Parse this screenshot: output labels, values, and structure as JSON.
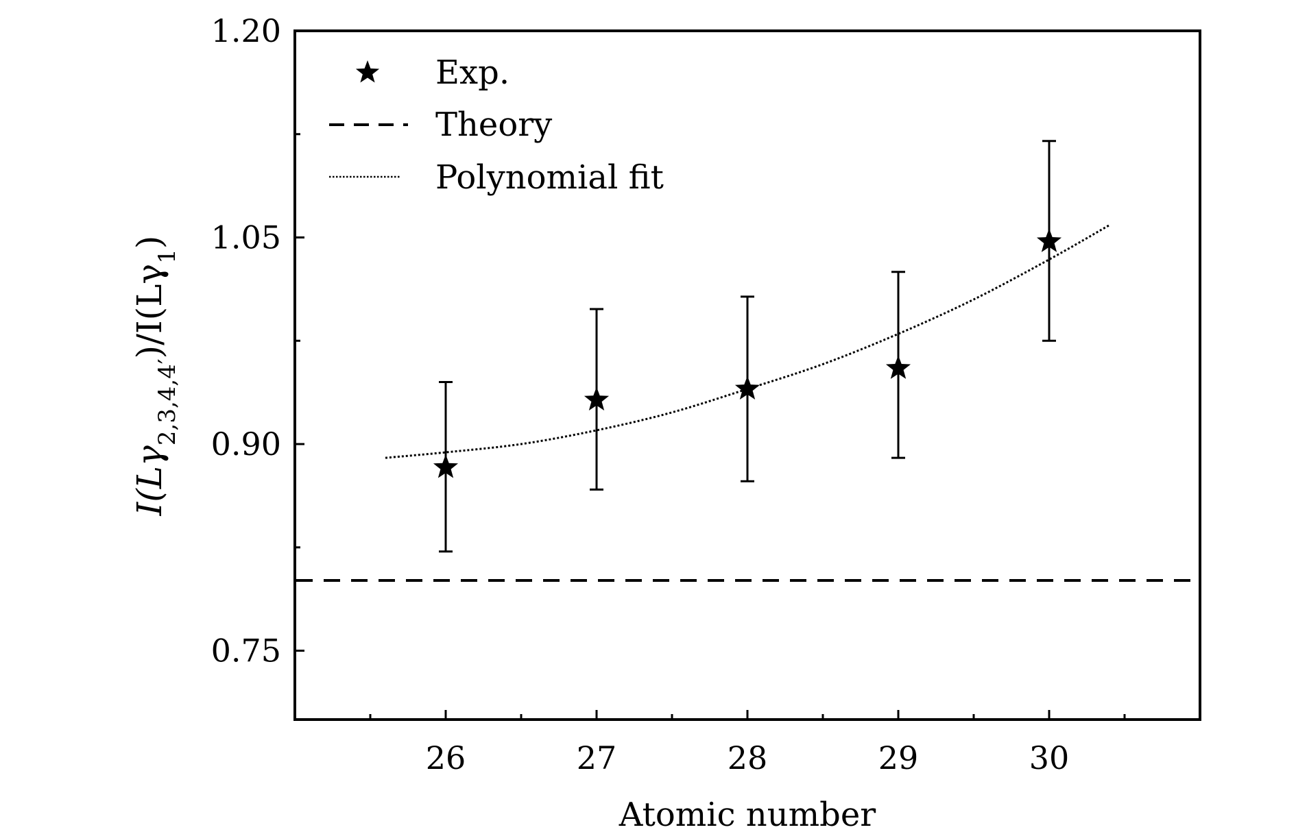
{
  "chart_data": {
    "type": "scatter",
    "title": "",
    "xlabel": "Atomic number",
    "ylabel": {
      "main": "I(Lγ",
      "sub1": "2,3,4,4′",
      "middle": ")/I(Lγ",
      "sub2": "1",
      "end": ")"
    },
    "xlim": [
      25,
      31
    ],
    "ylim": [
      0.7,
      1.2
    ],
    "x_ticks": [
      26,
      27,
      28,
      29,
      30
    ],
    "x_tick_labels": [
      "26",
      "27",
      "28",
      "29",
      "30"
    ],
    "y_ticks": [
      0.75,
      0.9,
      1.05,
      1.2
    ],
    "y_tick_labels": [
      "0.75",
      "0.90",
      "1.05",
      "1.20"
    ],
    "x_minor_ticks": [
      25.5,
      26.5,
      27.5,
      28.5,
      29.5,
      30.5
    ],
    "y_minor_ticks": [
      0.825,
      0.975,
      1.125
    ],
    "grid": false,
    "legend_position": "top-left",
    "series": [
      {
        "name": "Exp.",
        "kind": "points-with-errorbars",
        "marker": "star",
        "x": [
          26,
          27,
          28,
          29,
          30
        ],
        "y": [
          0.883,
          0.932,
          0.94,
          0.955,
          1.047
        ],
        "y_err_low": [
          0.822,
          0.867,
          0.873,
          0.89,
          0.975
        ],
        "y_err_high": [
          0.945,
          0.998,
          1.007,
          1.025,
          1.12
        ]
      },
      {
        "name": "Theory",
        "kind": "dashed-line",
        "x": [
          25,
          31
        ],
        "y": [
          0.801,
          0.801
        ]
      },
      {
        "name": "Polynomial fit",
        "kind": "dotted-curve",
        "x": [
          25.6,
          26.0,
          26.5,
          27.0,
          27.5,
          28.0,
          28.5,
          29.0,
          29.5,
          30.0,
          30.4
        ],
        "y": [
          0.89,
          0.894,
          0.9,
          0.91,
          0.923,
          0.94,
          0.958,
          0.98,
          1.005,
          1.034,
          1.059
        ]
      }
    ],
    "legend": [
      {
        "label": "Exp.",
        "symbol": "star"
      },
      {
        "label": "Theory",
        "symbol": "dashed-line"
      },
      {
        "label": "Polynomial fit",
        "symbol": "dotted-line"
      }
    ]
  }
}
